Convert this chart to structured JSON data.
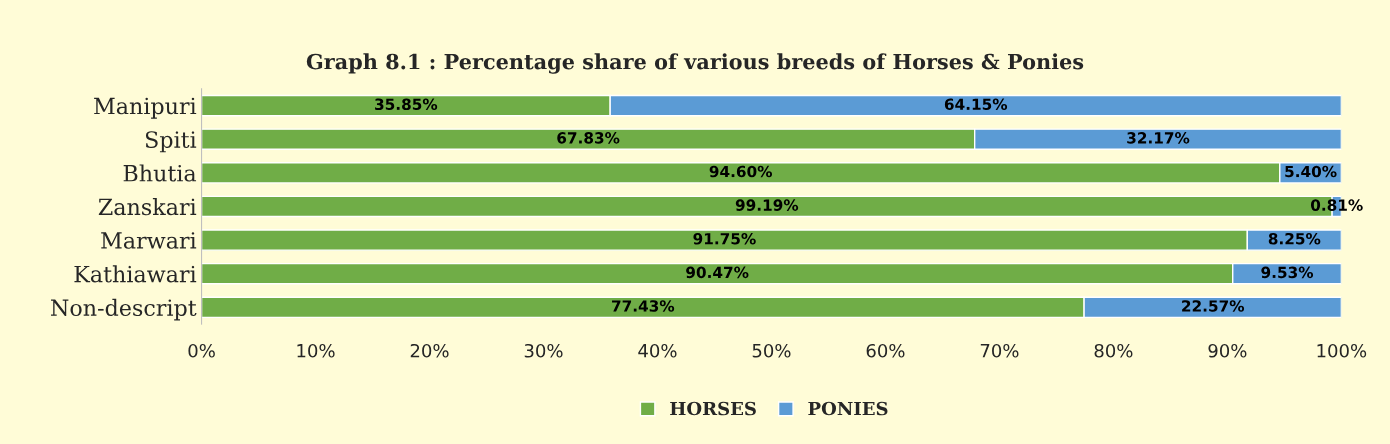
{
  "chart_data": {
    "type": "bar",
    "orientation": "horizontal",
    "stacked": true,
    "title": "Graph 8.1 : Percentage share of various breeds of Horses & Ponies",
    "categories": [
      "Manipuri",
      "Spiti",
      "Bhutia",
      "Zanskari",
      "Marwari",
      "Kathiawari",
      "Non-descript"
    ],
    "series": [
      {
        "name": "HORSES",
        "color": "#70ad47",
        "values": [
          35.85,
          67.83,
          94.6,
          99.19,
          91.75,
          90.47,
          77.43
        ],
        "value_labels": [
          "35.85%",
          "67.83%",
          "94.60%",
          "99.19%",
          "91.75%",
          "90.47%",
          "77.43%"
        ]
      },
      {
        "name": "PONIES",
        "color": "#5b9bd5",
        "values": [
          64.15,
          32.17,
          5.4,
          0.81,
          8.25,
          9.53,
          22.57
        ],
        "value_labels": [
          "64.15%",
          "32.17%",
          "5.40%",
          "0.81%",
          "8.25%",
          "9.53%",
          "22.57%"
        ]
      }
    ],
    "xlim": [
      0,
      100
    ],
    "xticks": [
      {
        "value": 0,
        "label": "0%"
      },
      {
        "value": 10,
        "label": "10%"
      },
      {
        "value": 20,
        "label": "20%"
      },
      {
        "value": 30,
        "label": "30%"
      },
      {
        "value": 40,
        "label": "40%"
      },
      {
        "value": 50,
        "label": "50%"
      },
      {
        "value": 60,
        "label": "60%"
      },
      {
        "value": 70,
        "label": "70%"
      },
      {
        "value": 80,
        "label": "80%"
      },
      {
        "value": 90,
        "label": "90%"
      },
      {
        "value": 100,
        "label": "100%"
      }
    ],
    "legend": "bottom",
    "grid": false
  }
}
